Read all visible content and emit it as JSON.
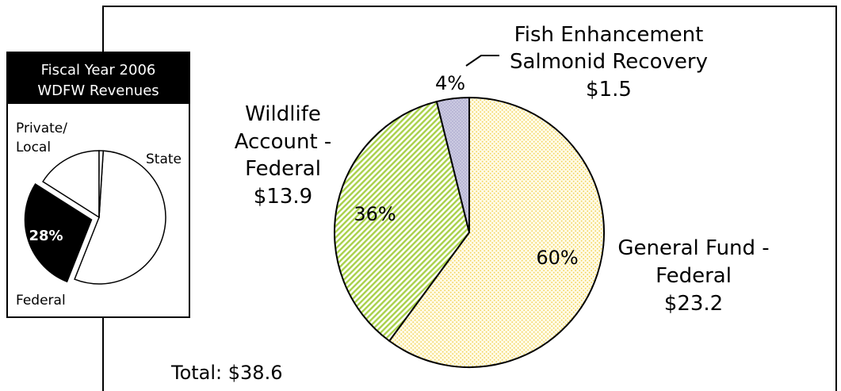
{
  "chart_data": [
    {
      "type": "pie",
      "title": "",
      "total_label": "Total: $38.6",
      "slices": [
        {
          "name": "General Fund - Federal",
          "label_lines": [
            "General Fund -",
            "Federal"
          ],
          "amount": 23.2,
          "amount_label": "$23.2",
          "percent": 60,
          "percent_label": "60%",
          "pattern": "dots-yellow"
        },
        {
          "name": "Wildlife Account - Federal",
          "label_lines": [
            "Wildlife",
            "Account -",
            "Federal"
          ],
          "amount": 13.9,
          "amount_label": "$13.9",
          "percent": 36,
          "percent_label": "36%",
          "pattern": "stripes-green"
        },
        {
          "name": "Fish Enhancement Salmonid Recovery",
          "label_lines": [
            "Fish Enhancement",
            "Salmonid Recovery"
          ],
          "amount": 1.5,
          "amount_label": "$1.5",
          "percent": 4,
          "percent_label": "4%",
          "pattern": "dots-purple"
        }
      ],
      "colors": {
        "dots-yellow": "#f2d35a",
        "stripes-green": "#a9d14a",
        "dots-purple": "#b9b7d6"
      }
    },
    {
      "type": "pie",
      "title_lines": [
        "Fiscal Year 2006",
        "WDFW Revenues"
      ],
      "slices": [
        {
          "name": "State",
          "label_lines": [
            "State"
          ],
          "percent": 56,
          "fill": "#ffffff"
        },
        {
          "name": "Federal",
          "label_lines": [
            "Federal"
          ],
          "percent": 28,
          "percent_label": "28%",
          "fill": "#000000",
          "exploded": true
        },
        {
          "name": "Private/Local",
          "label_lines": [
            "Private/",
            "Local"
          ],
          "percent": 16,
          "fill": "#ffffff"
        }
      ],
      "inner_divider_percent": 1
    }
  ]
}
